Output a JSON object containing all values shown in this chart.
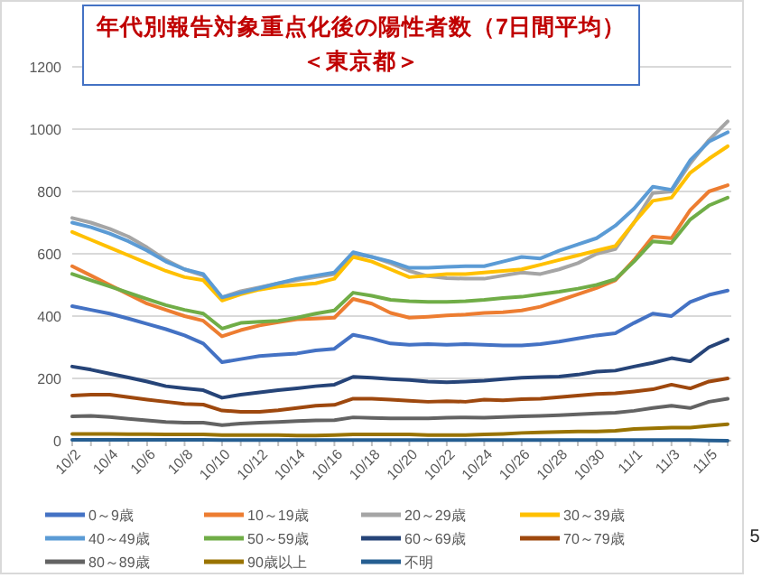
{
  "chart_data": {
    "type": "line",
    "title": "年代別報告対象重点化後の陽性者数（7日間平均）",
    "subtitle": "＜東京都＞",
    "categories": [
      "10/2",
      null,
      "10/4",
      null,
      "10/6",
      null,
      "10/8",
      null,
      "10/10",
      null,
      "10/12",
      null,
      "10/14",
      null,
      "10/16",
      null,
      "10/18",
      null,
      "10/20",
      null,
      "10/22",
      null,
      "10/24",
      null,
      "10/26",
      null,
      "10/28",
      null,
      "10/30",
      null,
      "11/1",
      null,
      "11/3",
      null,
      "11/5",
      null
    ],
    "ylim": [
      0,
      1200
    ],
    "yticks": [
      0,
      200,
      400,
      600,
      800,
      1000,
      1200
    ],
    "grid": "y",
    "legend": "bottom",
    "annotations": [
      "5"
    ],
    "series": [
      {
        "name": "0～9歳",
        "color": "#4472c4",
        "values": [
          432,
          420,
          408,
          392,
          375,
          358,
          338,
          312,
          252,
          262,
          272,
          276,
          280,
          290,
          295,
          340,
          328,
          312,
          308,
          310,
          308,
          310,
          308,
          306,
          306,
          310,
          318,
          328,
          338,
          345,
          378,
          408,
          400,
          445,
          468,
          482
        ]
      },
      {
        "name": "10～19歳",
        "color": "#ed7d31",
        "values": [
          560,
          530,
          500,
          470,
          440,
          420,
          400,
          385,
          335,
          355,
          370,
          380,
          390,
          392,
          395,
          455,
          440,
          410,
          395,
          398,
          402,
          405,
          410,
          412,
          418,
          430,
          450,
          470,
          490,
          515,
          580,
          655,
          650,
          740,
          800,
          820
        ]
      },
      {
        "name": "20～29歳",
        "color": "#a5a5a5",
        "values": [
          715,
          700,
          680,
          655,
          620,
          580,
          550,
          530,
          460,
          480,
          492,
          505,
          515,
          525,
          535,
          600,
          590,
          570,
          545,
          528,
          522,
          520,
          520,
          530,
          540,
          535,
          550,
          570,
          600,
          615,
          700,
          795,
          800,
          890,
          965,
          1025
        ]
      },
      {
        "name": "30～39歳",
        "color": "#ffc000",
        "values": [
          670,
          645,
          620,
          595,
          570,
          545,
          525,
          515,
          450,
          470,
          485,
          495,
          500,
          505,
          520,
          590,
          575,
          550,
          525,
          530,
          535,
          535,
          540,
          545,
          550,
          565,
          580,
          595,
          610,
          625,
          700,
          770,
          780,
          860,
          905,
          945
        ]
      },
      {
        "name": "40～49歳",
        "color": "#5b9bd5",
        "values": [
          700,
          685,
          665,
          640,
          610,
          575,
          550,
          535,
          460,
          475,
          490,
          505,
          520,
          530,
          540,
          605,
          590,
          575,
          555,
          555,
          558,
          560,
          560,
          575,
          590,
          585,
          610,
          630,
          650,
          690,
          745,
          815,
          805,
          900,
          960,
          990
        ]
      },
      {
        "name": "50～59歳",
        "color": "#70ad47",
        "values": [
          535,
          515,
          495,
          475,
          455,
          435,
          420,
          408,
          360,
          378,
          382,
          385,
          395,
          408,
          418,
          475,
          465,
          452,
          448,
          446,
          446,
          448,
          452,
          458,
          462,
          470,
          478,
          488,
          500,
          518,
          575,
          640,
          635,
          710,
          755,
          780
        ]
      },
      {
        "name": "60～69歳",
        "color": "#264478",
        "values": [
          238,
          228,
          215,
          203,
          190,
          175,
          168,
          162,
          138,
          148,
          155,
          162,
          168,
          175,
          180,
          205,
          202,
          198,
          195,
          190,
          188,
          190,
          193,
          198,
          202,
          204,
          206,
          212,
          222,
          225,
          238,
          250,
          265,
          255,
          300,
          325
        ]
      },
      {
        "name": "70～79歳",
        "color": "#9e480e",
        "values": [
          145,
          148,
          148,
          140,
          132,
          125,
          118,
          116,
          97,
          93,
          93,
          98,
          105,
          112,
          115,
          135,
          135,
          132,
          128,
          125,
          127,
          125,
          132,
          130,
          133,
          135,
          140,
          145,
          150,
          152,
          158,
          165,
          180,
          168,
          190,
          200
        ]
      },
      {
        "name": "80～89歳",
        "color": "#636363",
        "values": [
          78,
          80,
          76,
          70,
          65,
          60,
          58,
          58,
          50,
          55,
          58,
          60,
          63,
          65,
          66,
          75,
          73,
          72,
          72,
          72,
          74,
          75,
          74,
          76,
          78,
          80,
          82,
          85,
          88,
          90,
          96,
          105,
          112,
          105,
          125,
          135
        ]
      },
      {
        "name": "90歳以上",
        "color": "#997300",
        "values": [
          22,
          22,
          22,
          21,
          21,
          20,
          20,
          20,
          18,
          18,
          18,
          18,
          17,
          17,
          18,
          20,
          20,
          20,
          20,
          18,
          18,
          18,
          20,
          22,
          25,
          27,
          28,
          30,
          30,
          32,
          38,
          40,
          42,
          42,
          48,
          53
        ]
      },
      {
        "name": "不明",
        "color": "#255e91",
        "values": [
          3,
          3,
          3,
          3,
          3,
          3,
          3,
          3,
          2,
          2,
          2,
          2,
          2,
          2,
          2,
          2,
          2,
          2,
          2,
          2,
          2,
          2,
          2,
          2,
          2,
          2,
          2,
          2,
          2,
          2,
          2,
          2,
          2,
          2,
          1,
          0
        ]
      }
    ]
  }
}
